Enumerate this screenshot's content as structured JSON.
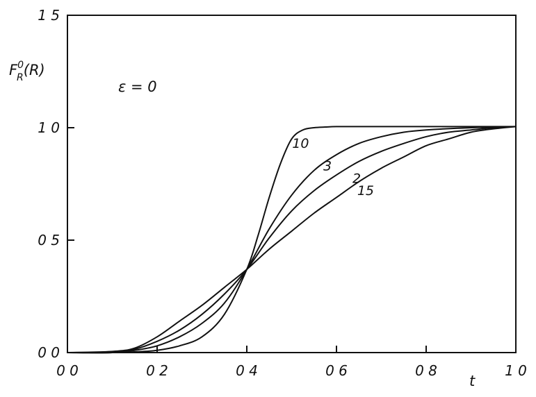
{
  "chart_data": {
    "type": "line",
    "title": "",
    "xlabel": "t",
    "ylabel": "F_R^0(R)",
    "ylabel_main": "F",
    "ylabel_sup": "0",
    "ylabel_sub": "R",
    "ylabel_arg": "(R)",
    "annotation": "ε = 0",
    "xlim": [
      0.0,
      1.0
    ],
    "ylim": [
      0.0,
      1.5
    ],
    "x_ticks": [
      {
        "value": 0.0,
        "label": "0 0"
      },
      {
        "value": 0.2,
        "label": "0 2"
      },
      {
        "value": 0.4,
        "label": "0 4"
      },
      {
        "value": 0.6,
        "label": "0 6"
      },
      {
        "value": 0.8,
        "label": "0 8"
      },
      {
        "value": 1.0,
        "label": "1 0"
      }
    ],
    "y_ticks": [
      {
        "value": 0.0,
        "label": "0 0"
      },
      {
        "value": 0.5,
        "label": "0 5"
      },
      {
        "value": 1.0,
        "label": "1 0"
      },
      {
        "value": 1.5,
        "label": "1 5"
      }
    ],
    "grid": false,
    "series": [
      {
        "name": "10",
        "label_at": [
          0.52,
          0.91
        ],
        "x": [
          0.0,
          0.1,
          0.15,
          0.2,
          0.25,
          0.3,
          0.35,
          0.4,
          0.425,
          0.45,
          0.475,
          0.5,
          0.525,
          0.55,
          0.575,
          0.6,
          0.65,
          0.7,
          0.8,
          0.9,
          1.0
        ],
        "y": [
          0.0,
          0.0,
          0.003,
          0.01,
          0.03,
          0.07,
          0.17,
          0.37,
          0.52,
          0.69,
          0.84,
          0.95,
          0.99,
          1.0,
          1.003,
          1.005,
          1.005,
          1.005,
          1.005,
          1.005,
          1.005
        ]
      },
      {
        "name": "3",
        "label_at": [
          0.58,
          0.81
        ],
        "x": [
          0.0,
          0.1,
          0.15,
          0.2,
          0.25,
          0.3,
          0.35,
          0.4,
          0.45,
          0.5,
          0.55,
          0.6,
          0.65,
          0.7,
          0.75,
          0.8,
          0.9,
          1.0
        ],
        "y": [
          0.0,
          0.0,
          0.01,
          0.03,
          0.07,
          0.13,
          0.22,
          0.37,
          0.55,
          0.7,
          0.81,
          0.88,
          0.93,
          0.96,
          0.98,
          0.99,
          1.0,
          1.005
        ]
      },
      {
        "name": "2",
        "label_at": [
          0.645,
          0.755
        ],
        "x": [
          0.0,
          0.1,
          0.15,
          0.2,
          0.25,
          0.3,
          0.35,
          0.4,
          0.45,
          0.5,
          0.55,
          0.6,
          0.65,
          0.7,
          0.75,
          0.8,
          0.85,
          0.9,
          0.95,
          1.0
        ],
        "y": [
          0.0,
          0.0,
          0.015,
          0.05,
          0.1,
          0.17,
          0.26,
          0.37,
          0.51,
          0.63,
          0.72,
          0.79,
          0.85,
          0.895,
          0.93,
          0.96,
          0.98,
          0.99,
          1.0,
          1.005
        ]
      },
      {
        "name": "15",
        "label_at": [
          0.665,
          0.7
        ],
        "x": [
          0.0,
          0.1,
          0.15,
          0.2,
          0.25,
          0.3,
          0.35,
          0.4,
          0.45,
          0.5,
          0.55,
          0.6,
          0.65,
          0.7,
          0.75,
          0.8,
          0.85,
          0.9,
          0.95,
          1.0
        ],
        "y": [
          0.0,
          0.005,
          0.02,
          0.07,
          0.14,
          0.21,
          0.29,
          0.37,
          0.46,
          0.54,
          0.62,
          0.69,
          0.76,
          0.82,
          0.87,
          0.92,
          0.95,
          0.98,
          0.995,
          1.005
        ]
      }
    ]
  }
}
